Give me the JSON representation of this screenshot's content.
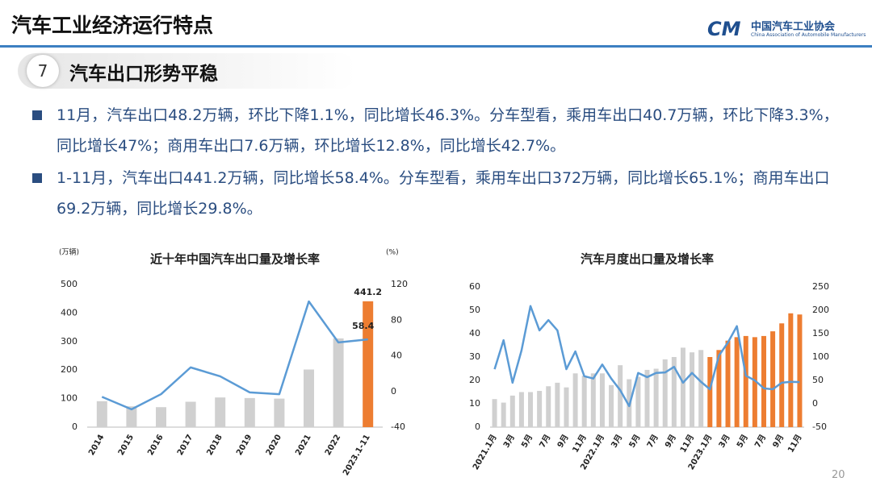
{
  "header": {
    "title": "汽车工业经济运行特点",
    "org_name": "中国汽车工业协会",
    "org_name_en": "China Association of Automobile Manufacturers"
  },
  "section": {
    "number": "7",
    "title": "汽车出口形势平稳"
  },
  "bullets": [
    "11月，汽车出口48.2万辆，环比下降1.1%，同比增长46.3%。分车型看，乘用车出口40.7万辆，环比下降3.3%，同比增长47%；商用车出口7.6万辆，环比增长12.8%，同比增长42.7%。",
    "1-11月，汽车出口441.2万辆，同比增长58.4%。分车型看，乘用车出口372万辆，同比增长65.1%；商用车出口69.2万辆，同比增长29.8%。"
  ],
  "page_number": "20",
  "chart_data": [
    {
      "type": "combo",
      "title": "近十年中国汽车出口量及增长率",
      "y_label": "(万辆)",
      "y2_label": "(%)",
      "categories": [
        "2014",
        "2015",
        "2016",
        "2017",
        "2018",
        "2019",
        "2020",
        "2021",
        "2022",
        "2023.1-11"
      ],
      "ylim": [
        0,
        500
      ],
      "yticks": [
        0,
        100,
        200,
        300,
        400,
        500
      ],
      "y2lim": [
        -40,
        120
      ],
      "y2ticks": [
        -40,
        0,
        40,
        80,
        120
      ],
      "series": [
        {
          "type": "bar",
          "values": [
            91,
            73,
            70,
            89,
            104,
            102,
            100,
            202,
            311,
            441.2
          ],
          "colors": [
            "#d0d0d0",
            "#d0d0d0",
            "#d0d0d0",
            "#d0d0d0",
            "#d0d0d0",
            "#d0d0d0",
            "#d0d0d0",
            "#d0d0d0",
            "#d0d0d0",
            "#ed7d31"
          ],
          "value_labels": [
            null,
            null,
            null,
            null,
            null,
            null,
            null,
            null,
            null,
            "441.2"
          ]
        },
        {
          "type": "line",
          "axis": "y2",
          "color": "#5b9bd5",
          "values": [
            -6,
            -20,
            -3,
            27,
            17,
            -1,
            -3,
            101,
            55,
            58.4
          ],
          "value_labels": [
            null,
            null,
            null,
            null,
            null,
            null,
            null,
            null,
            null,
            "58.4"
          ]
        }
      ]
    },
    {
      "type": "combo",
      "title": "汽车月度出口量及增长率",
      "categories": [
        "2021.1月",
        null,
        "3月",
        null,
        "5月",
        null,
        "7月",
        null,
        "9月",
        null,
        "11月",
        null,
        "2022.1月",
        null,
        "3月",
        null,
        "5月",
        null,
        "7月",
        null,
        "9月",
        null,
        "11月",
        null,
        "2023.1月",
        null,
        "3月",
        null,
        "5月",
        null,
        "7月",
        null,
        "9月",
        null,
        "11月"
      ],
      "ylim": [
        0,
        60
      ],
      "yticks": [
        0,
        10,
        20,
        30,
        40,
        50,
        60
      ],
      "y2lim": [
        -50,
        250
      ],
      "y2ticks": [
        -50,
        0,
        50,
        100,
        150,
        200,
        250
      ],
      "series": [
        {
          "type": "bar",
          "values": [
            12,
            10.5,
            13.5,
            15,
            15,
            15.5,
            17.5,
            19,
            17,
            23,
            22,
            23,
            23,
            18,
            26.5,
            20.5,
            21.5,
            24.5,
            25,
            29,
            30,
            34,
            32,
            33,
            30,
            33,
            37,
            38.5,
            39,
            38.5,
            39,
            41,
            44.4,
            48.7,
            48.2
          ],
          "colors": [
            "#d0d0d0",
            "#d0d0d0",
            "#d0d0d0",
            "#d0d0d0",
            "#d0d0d0",
            "#d0d0d0",
            "#d0d0d0",
            "#d0d0d0",
            "#d0d0d0",
            "#d0d0d0",
            "#d0d0d0",
            "#d0d0d0",
            "#d0d0d0",
            "#d0d0d0",
            "#d0d0d0",
            "#d0d0d0",
            "#d0d0d0",
            "#d0d0d0",
            "#d0d0d0",
            "#d0d0d0",
            "#d0d0d0",
            "#d0d0d0",
            "#d0d0d0",
            "#d0d0d0",
            "#ed7d31",
            "#ed7d31",
            "#ed7d31",
            "#ed7d31",
            "#ed7d31",
            "#ed7d31",
            "#ed7d31",
            "#ed7d31",
            "#ed7d31",
            "#ed7d31",
            "#ed7d31"
          ]
        },
        {
          "type": "line",
          "axis": "y2",
          "color": "#5b9bd5",
          "values": [
            74,
            136,
            45,
            114,
            209,
            157,
            179,
            157,
            74,
            112,
            59,
            54,
            84,
            54,
            29,
            -5,
            66,
            57,
            66,
            67,
            79,
            45,
            66,
            47,
            31,
            103,
            131,
            166,
            60,
            50,
            33,
            31,
            45,
            47,
            46.3
          ]
        }
      ]
    }
  ]
}
